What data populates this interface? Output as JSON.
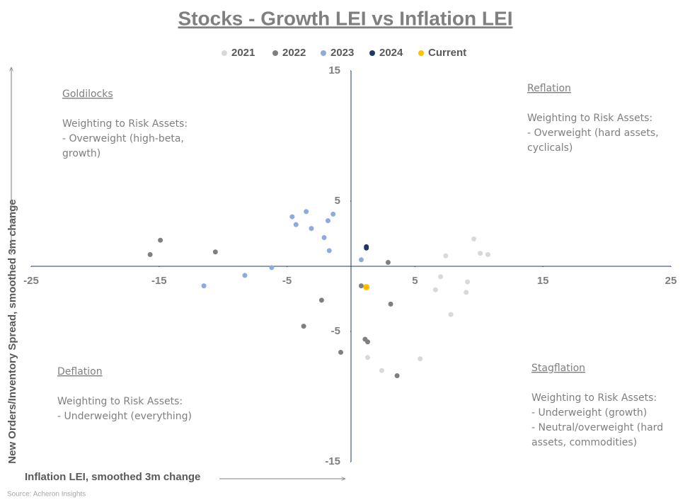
{
  "chart_data": {
    "type": "scatter",
    "title": "Stocks - Growth LEI vs Inflation LEI",
    "x_label": "Inflation LEI, smoothed 3m change",
    "y_label": "New Orders/Inventory Spread, smoothed 3m change",
    "source": "Source: Acheron Insights",
    "xlim": [
      -25,
      25
    ],
    "xticks": [
      -25,
      -15,
      -5,
      5,
      15,
      25
    ],
    "ylim": [
      -15,
      15
    ],
    "yticks": [
      -15,
      -5,
      5,
      15
    ],
    "series": [
      {
        "name": "2021",
        "color": "#d9d9d9",
        "x": [
          9.6,
          7.4,
          10.1,
          10.7,
          7.0,
          9.1,
          6.6,
          9.0,
          7.8,
          1.3,
          2.4,
          5.4
        ],
        "y": [
          2.1,
          0.8,
          1.0,
          0.9,
          -0.8,
          -1.2,
          -1.8,
          -2.0,
          -3.7,
          -7.0,
          -8.0,
          -7.1
        ]
      },
      {
        "name": "2022",
        "color": "#7f7f7f",
        "x": [
          -14.9,
          -15.7,
          -10.6,
          2.9,
          0.8,
          -2.3,
          3.1,
          -3.7,
          1.1,
          1.3,
          -0.8,
          3.6
        ],
        "y": [
          2.0,
          0.9,
          1.1,
          0.3,
          -1.5,
          -2.6,
          -2.9,
          -4.6,
          -5.6,
          -5.8,
          -6.6,
          -8.4
        ]
      },
      {
        "name": "2023",
        "color": "#8faadc",
        "x": [
          -4.6,
          -3.5,
          -1.4,
          -4.3,
          -3.1,
          -1.8,
          -2.1,
          -1.7,
          0.8,
          -6.2,
          -8.3,
          -11.5
        ],
        "y": [
          3.8,
          4.2,
          4.0,
          3.2,
          2.9,
          3.5,
          2.2,
          1.2,
          0.5,
          -0.1,
          -0.7,
          -1.5
        ]
      },
      {
        "name": "2024",
        "color": "#1f3864",
        "x": [
          1.2,
          1.2
        ],
        "y": [
          1.5,
          1.4
        ]
      },
      {
        "name": "Current",
        "color": "#ffc000",
        "x": [
          1.2
        ],
        "y": [
          -1.6
        ]
      }
    ],
    "annotations": [
      {
        "title": "Goldilocks",
        "lines": [
          "Weighting to Risk Assets:",
          "- Overweight (high-beta,",
          "growth)"
        ]
      },
      {
        "title": "Reflation",
        "lines": [
          "Weighting to Risk Assets:",
          "- Overweight (hard assets,",
          "cyclicals)"
        ]
      },
      {
        "title": "Deflation",
        "lines": [
          "Weighting to Risk Assets:",
          "- Underweight (everything)"
        ]
      },
      {
        "title": "Stagflation",
        "lines": [
          "Weighting to Risk Assets:",
          "- Underweight (growth)",
          "- Neutral/overweight (hard",
          "assets, commodities)"
        ]
      }
    ]
  }
}
